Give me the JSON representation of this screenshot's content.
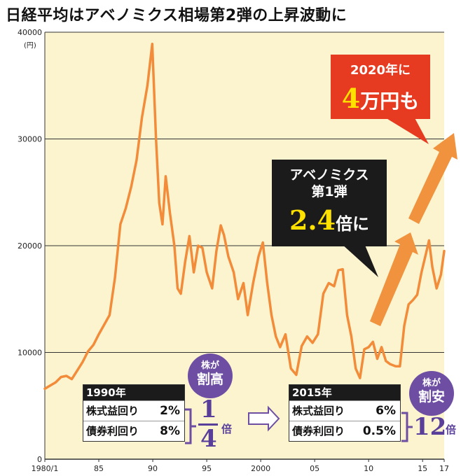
{
  "title": "日経平均はアベノミクス相場第2弾の上昇波動に",
  "callouts": {
    "target": {
      "line1": "2020年に",
      "num": "4",
      "rest": "万円も"
    },
    "abe1": {
      "line1": "アベノミクス",
      "line2": "第1弾",
      "num": "2.4",
      "rest": "倍に"
    }
  },
  "table1990": {
    "year": "1990年",
    "rows": [
      {
        "label": "株式益回り",
        "value": "2%"
      },
      {
        "label": "債券利回り",
        "value": "8%"
      }
    ]
  },
  "table2015": {
    "year": "2015年",
    "rows": [
      {
        "label": "株式益回り",
        "value": "6%"
      },
      {
        "label": "債券利回り",
        "value": "0.5%"
      }
    ]
  },
  "badge_high": {
    "small": "株が",
    "big": "割高"
  },
  "badge_low": {
    "small": "株が",
    "big": "割安"
  },
  "ratio_high": {
    "num": "1",
    "den": "4",
    "unit": "倍"
  },
  "ratio_low": {
    "value": "12",
    "unit": "倍"
  },
  "chart_data": {
    "type": "line",
    "title": "日経平均はアベノミクス相場第2弾の上昇波動に",
    "ylabel": "(円)",
    "xlabel": "",
    "ylim": [
      0,
      40000
    ],
    "xlim": [
      1980.0,
      2017.0
    ],
    "yticks": [
      0,
      10000,
      20000,
      30000,
      40000
    ],
    "ytick_labels": [
      "0",
      "10000",
      "20000",
      "30000",
      "40000"
    ],
    "xticks": [
      1980,
      1985,
      1990,
      1995,
      2000,
      2005,
      2010,
      2015,
      2017
    ],
    "xtick_labels": [
      "1980/1",
      "85",
      "90",
      "95",
      "2000",
      "05",
      "10",
      "15",
      "17"
    ],
    "grid": true,
    "line_color": "#f28c3a",
    "series": [
      {
        "x": [
          1980.0,
          1980.5,
          1981.0,
          1981.5,
          1982.0,
          1982.5,
          1983.0,
          1983.5,
          1984.0,
          1984.5,
          1985.0,
          1985.5,
          1986.0,
          1986.5,
          1987.0,
          1987.5,
          1988.0,
          1988.5,
          1989.0,
          1989.5,
          1989.95,
          1990.3,
          1990.6,
          1990.9,
          1991.2,
          1991.6,
          1992.0,
          1992.3,
          1992.6,
          1993.0,
          1993.4,
          1993.8,
          1994.2,
          1994.6,
          1995.0,
          1995.5,
          1995.9,
          1996.3,
          1996.6,
          1997.0,
          1997.5,
          1997.9,
          1998.4,
          1998.8,
          1999.3,
          1999.8,
          2000.2,
          2000.6,
          2001.0,
          2001.4,
          2001.8,
          2002.3,
          2002.8,
          2003.3,
          2003.8,
          2004.3,
          2004.8,
          2005.3,
          2005.8,
          2006.3,
          2006.8,
          2007.2,
          2007.6,
          2008.0,
          2008.4,
          2008.8,
          2009.2,
          2009.6,
          2010.0,
          2010.4,
          2010.8,
          2011.2,
          2011.6,
          2012.0,
          2012.5,
          2012.9,
          2013.3,
          2013.7,
          2014.1,
          2014.5,
          2014.9,
          2015.3,
          2015.6,
          2015.9,
          2016.3,
          2016.7,
          2017.0
        ],
        "y": [
          6600,
          6900,
          7200,
          7700,
          7800,
          7500,
          8300,
          9100,
          10100,
          10700,
          11700,
          12600,
          13500,
          17000,
          22000,
          23500,
          25500,
          28000,
          32000,
          35000,
          38900,
          30000,
          24000,
          22000,
          26500,
          23000,
          20000,
          16000,
          15500,
          18500,
          20900,
          17500,
          20000,
          19800,
          17500,
          16000,
          19500,
          21900,
          21000,
          19000,
          17500,
          15000,
          16500,
          13500,
          16500,
          19000,
          20300,
          16500,
          13500,
          11500,
          10500,
          11700,
          8500,
          7900,
          10600,
          11500,
          10900,
          11700,
          15500,
          16500,
          16200,
          17700,
          17800,
          13500,
          11500,
          8500,
          7600,
          10300,
          10500,
          11000,
          9400,
          10500,
          9200,
          8900,
          8700,
          8700,
          12500,
          14500,
          14900,
          15400,
          17500,
          19200,
          20500,
          18000,
          16000,
          17300,
          19500
        ]
      }
    ]
  }
}
